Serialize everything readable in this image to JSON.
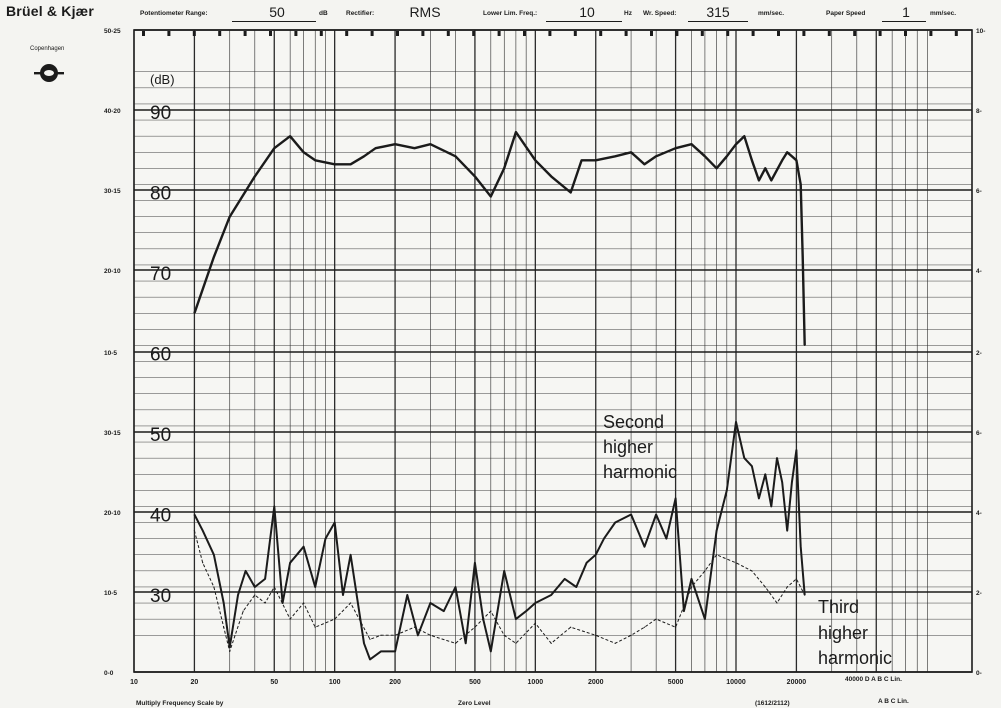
{
  "header": {
    "brand": "Brüel & Kjær",
    "city": "Copenhagen",
    "potentiometer_label": "Potentiometer Range:",
    "potentiometer_value": "50",
    "potentiometer_unit": "dB",
    "rectifier_label": "Rectifier:",
    "rectifier_value": "RMS",
    "lower_lim_label": "Lower Lim. Freq.:",
    "lower_lim_value": "10",
    "lower_lim_unit": "Hz",
    "wr_speed_label": "Wr. Speed:",
    "wr_speed_value": "315",
    "wr_speed_unit": "mm/sec.",
    "paper_speed_label": "Paper Speed",
    "paper_speed_value": "1",
    "paper_speed_unit": "mm/sec."
  },
  "footer": {
    "multiply": "Multiply Frequency Scale by",
    "zero_level": "Zero Level",
    "model": "(1612/2112)",
    "weighting_1": "40000 D   A   B   C   Lin.",
    "weighting_2": "A   B   C   Lin."
  },
  "chart_data": {
    "type": "line",
    "ylabel": "(dB)",
    "xscale": "log",
    "xlim": [
      10,
      40000
    ],
    "ylim": [
      25,
      95
    ],
    "x_tick_labels": [
      {
        "x": 10,
        "label": "10"
      },
      {
        "x": 20,
        "label": "20"
      },
      {
        "x": 50,
        "label": "50"
      },
      {
        "x": 100,
        "label": "100"
      },
      {
        "x": 200,
        "label": "200"
      },
      {
        "x": 500,
        "label": "500"
      },
      {
        "x": 1000,
        "label": "1000"
      },
      {
        "x": 2000,
        "label": "2000"
      },
      {
        "x": 5000,
        "label": "5000"
      },
      {
        "x": 10000,
        "label": "10000"
      },
      {
        "x": 20000,
        "label": "20000"
      }
    ],
    "y_tick_labels": [
      30,
      40,
      50,
      60,
      70,
      80,
      90
    ],
    "left_scale_labels": [
      "50-25",
      "40-20",
      "30-15",
      "20-10",
      "10-5",
      "30-15",
      "20-10",
      "10-5",
      "0-0"
    ],
    "right_scale_labels": [
      "10-",
      "8-",
      "6-",
      "4-",
      "2-",
      "6-",
      "4-",
      "2-",
      "0-"
    ],
    "series": [
      {
        "name": "",
        "x": [
          20,
          25,
          30,
          40,
          50,
          60,
          70,
          80,
          100,
          120,
          140,
          160,
          200,
          250,
          300,
          400,
          500,
          600,
          700,
          800,
          1000,
          1200,
          1500,
          1700,
          2000,
          2500,
          3000,
          3500,
          4000,
          5000,
          6000,
          7000,
          8000,
          9000,
          10000,
          11000,
          12000,
          13000,
          14000,
          15000,
          17000,
          18000,
          19000,
          20000,
          21000,
          21500,
          22000
        ],
        "y": [
          65,
          72,
          77,
          82,
          85.5,
          87,
          85,
          84,
          83.5,
          83.5,
          84.5,
          85.5,
          86,
          85.5,
          86,
          84.5,
          82,
          79.5,
          83,
          87.5,
          84,
          82,
          80,
          84,
          84,
          84.5,
          85,
          83.5,
          84.5,
          85.5,
          86,
          84.5,
          83,
          84.5,
          86,
          87,
          84,
          81.5,
          83,
          81.5,
          84,
          85,
          84.5,
          84,
          81,
          72,
          61
        ]
      },
      {
        "name": "Second higher harmonic",
        "x": [
          20,
          22,
          25,
          28,
          30,
          33,
          36,
          40,
          45,
          50,
          55,
          60,
          70,
          80,
          90,
          100,
          110,
          120,
          140,
          150,
          170,
          200,
          230,
          260,
          300,
          350,
          400,
          450,
          500,
          550,
          600,
          700,
          800,
          900,
          1000,
          1200,
          1400,
          1600,
          1800,
          2000,
          2200,
          2500,
          3000,
          3500,
          4000,
          4500,
          5000,
          5500,
          6000,
          7000,
          8000,
          9000,
          10000,
          11000,
          12000,
          13000,
          14000,
          15000,
          16000,
          17000,
          18000,
          19000,
          20000,
          21000,
          22000
        ],
        "y": [
          40,
          38,
          35,
          29,
          23.5,
          30,
          33,
          31,
          32,
          41,
          29,
          34,
          36,
          31,
          37,
          39,
          30,
          35,
          24,
          22,
          23,
          23,
          30,
          25,
          29,
          28,
          31,
          24,
          34,
          27,
          23,
          33,
          27,
          28,
          29,
          30,
          32,
          31,
          34,
          35,
          37,
          39,
          40,
          36,
          40,
          37,
          42,
          28,
          32,
          27,
          38,
          43,
          51.5,
          47,
          46,
          42,
          45,
          41,
          47,
          44,
          38,
          44,
          48,
          36,
          30
        ]
      },
      {
        "name": "Third higher harmonic",
        "x": [
          20,
          22,
          25,
          28,
          30,
          35,
          40,
          45,
          50,
          60,
          70,
          80,
          100,
          120,
          150,
          170,
          200,
          250,
          300,
          400,
          500,
          600,
          700,
          800,
          1000,
          1200,
          1500,
          2000,
          2500,
          3000,
          3500,
          4000,
          5000,
          6000,
          7000,
          8000,
          10000,
          12000,
          14000,
          16000,
          18000,
          20000,
          22000
        ],
        "y": [
          38,
          34,
          31,
          26,
          23,
          28,
          30,
          29,
          31,
          27,
          29,
          26,
          27,
          29,
          24.5,
          25,
          25,
          26,
          25,
          24,
          26,
          28,
          25,
          24,
          26.5,
          24,
          26,
          25,
          24,
          25,
          26,
          27,
          26,
          31,
          33,
          35,
          34,
          33,
          31,
          29,
          31,
          32,
          30
        ]
      }
    ],
    "annotations": [
      "Second",
      "higher",
      "harmonic",
      "Third",
      "higher",
      "harmonic"
    ]
  }
}
